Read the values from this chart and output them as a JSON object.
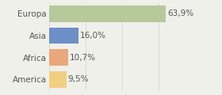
{
  "categories": [
    "Europa",
    "Asia",
    "Africa",
    "America"
  ],
  "values": [
    63.9,
    16.0,
    10.7,
    9.5
  ],
  "labels": [
    "63,9%",
    "16,0%",
    "10,7%",
    "9,5%"
  ],
  "bar_colors": [
    "#b5c99a",
    "#6d8fc7",
    "#e8a87c",
    "#f0d080"
  ],
  "background_color": "#f0f0eb",
  "xlim": [
    0,
    80
  ],
  "bar_height": 0.75,
  "label_fontsize": 7.5,
  "tick_fontsize": 7.5,
  "grid_color": "#d8d8d0",
  "text_color": "#555555"
}
